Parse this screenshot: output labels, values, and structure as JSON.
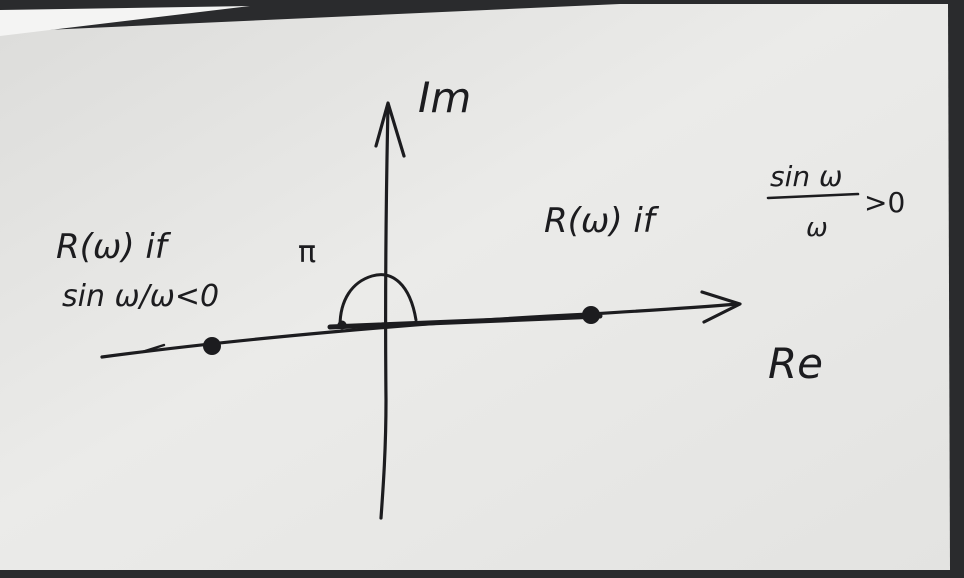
{
  "diagram": {
    "im_axis_label": "Im",
    "re_axis_label": "Re",
    "pi_label": "π",
    "left_point_label_line1": "R(ω) if",
    "left_point_label_line2": "sin ω/ω<0",
    "right_point_label_prefix": "R(ω) if",
    "right_fraction_numerator": "sin ω",
    "right_fraction_denominator": "ω",
    "right_condition_suffix": ">0"
  },
  "colors": {
    "ink": "#1c1c1f",
    "board": "#e9e9e7",
    "frame": "#2a2b2d"
  }
}
